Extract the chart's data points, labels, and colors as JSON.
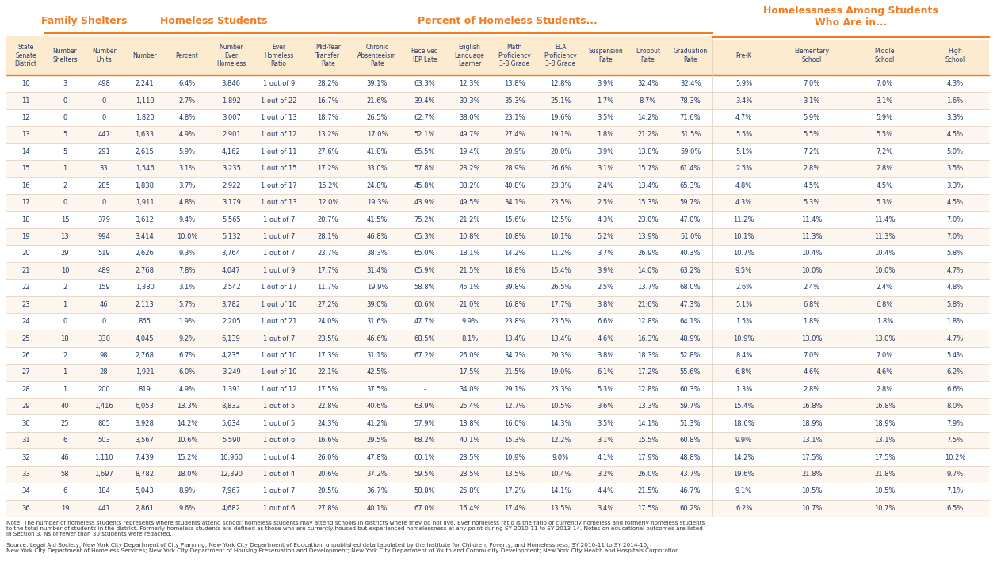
{
  "title_main": "Homelessness Among Students\nWho Are in...",
  "section_headers": [
    {
      "label": "Family Shelters",
      "color": "#F47B20"
    },
    {
      "label": "Homeless Students",
      "color": "#F47B20"
    },
    {
      "label": "Percent of Homeless Students...",
      "color": "#F47B20"
    },
    {
      "label": "Homelessness Among Students\nWho Are in...",
      "color": "#F47B20"
    }
  ],
  "col_headers": [
    "State\nSenate\nDistrict",
    "Number\nShelters",
    "Number\nUnits",
    "Number",
    "Percent",
    "Number\nEver\nHomeless",
    "Ever\nHomeless\nRatio",
    "Mid-Year\nTransfer\nRate",
    "Chronic\nAbsenteeism\nRate",
    "Received\nIEP Late",
    "English\nLanguage\nLearner",
    "Math\nProficiency\n3-8 Grade",
    "ELA\nProficiency\n3-8 Grade",
    "Suspension\nRate",
    "Dropout\nRate",
    "Graduation\nRate",
    "Pre-K",
    "Elementary\nSchool",
    "Middle\nSchool",
    "High\nSchool"
  ],
  "rows": [
    [
      "10",
      "3",
      "498",
      "2,241",
      "6.4%",
      "3,846",
      "1 out of 9",
      "28.2%",
      "39.1%",
      "63.3%",
      "12.3%",
      "13.8%",
      "12.8%",
      "3.9%",
      "32.4%",
      "32.4%",
      "5.9%",
      "7.0%",
      "7.0%",
      "4.3%"
    ],
    [
      "11",
      "0",
      "0",
      "1,110",
      "2.7%",
      "1,892",
      "1 out of 22",
      "16.7%",
      "21.6%",
      "39.4%",
      "30.3%",
      "35.3%",
      "25.1%",
      "1.7%",
      "8.7%",
      "78.3%",
      "3.4%",
      "3.1%",
      "3.1%",
      "1.6%"
    ],
    [
      "12",
      "0",
      "0",
      "1,820",
      "4.8%",
      "3,007",
      "1 out of 13",
      "18.7%",
      "26.5%",
      "62.7%",
      "38.0%",
      "23.1%",
      "19.6%",
      "3.5%",
      "14.2%",
      "71.6%",
      "4.7%",
      "5.9%",
      "5.9%",
      "3.3%"
    ],
    [
      "13",
      "5",
      "447",
      "1,633",
      "4.9%",
      "2,901",
      "1 out of 12",
      "13.2%",
      "17.0%",
      "52.1%",
      "49.7%",
      "27.4%",
      "19.1%",
      "1.8%",
      "21.2%",
      "51.5%",
      "5.5%",
      "5.5%",
      "5.5%",
      "4.5%"
    ],
    [
      "14",
      "5",
      "291",
      "2,615",
      "5.9%",
      "4,162",
      "1 out of 11",
      "27.6%",
      "41.8%",
      "65.5%",
      "19.4%",
      "20.9%",
      "20.0%",
      "3.9%",
      "13.8%",
      "59.0%",
      "5.1%",
      "7.2%",
      "7.2%",
      "5.0%"
    ],
    [
      "15",
      "1",
      "33",
      "1,546",
      "3.1%",
      "3,235",
      "1 out of 15",
      "17.2%",
      "33.0%",
      "57.8%",
      "23.2%",
      "28.9%",
      "26.6%",
      "3.1%",
      "15.7%",
      "61.4%",
      "2.5%",
      "2.8%",
      "2.8%",
      "3.5%"
    ],
    [
      "16",
      "2",
      "285",
      "1,838",
      "3.7%",
      "2,922",
      "1 out of 17",
      "15.2%",
      "24.8%",
      "45.8%",
      "38.2%",
      "40.8%",
      "23.3%",
      "2.4%",
      "13.4%",
      "65.3%",
      "4.8%",
      "4.5%",
      "4.5%",
      "3.3%"
    ],
    [
      "17",
      "0",
      "0",
      "1,911",
      "4.8%",
      "3,179",
      "1 out of 13",
      "12.0%",
      "19.3%",
      "43.9%",
      "49.5%",
      "34.1%",
      "23.5%",
      "2.5%",
      "15.3%",
      "59.7%",
      "4.3%",
      "5.3%",
      "5.3%",
      "4.5%"
    ],
    [
      "18",
      "15",
      "379",
      "3,612",
      "9.4%",
      "5,565",
      "1 out of 7",
      "20.7%",
      "41.5%",
      "75.2%",
      "21.2%",
      "15.6%",
      "12.5%",
      "4.3%",
      "23.0%",
      "47.0%",
      "11.2%",
      "11.4%",
      "11.4%",
      "7.0%"
    ],
    [
      "19",
      "13",
      "994",
      "3,414",
      "10.0%",
      "5,132",
      "1 out of 7",
      "28.1%",
      "46.8%",
      "65.3%",
      "10.8%",
      "10.8%",
      "10.1%",
      "5.2%",
      "13.9%",
      "51.0%",
      "10.1%",
      "11.3%",
      "11.3%",
      "7.0%"
    ],
    [
      "20",
      "29",
      "519",
      "2,626",
      "9.3%",
      "3,764",
      "1 out of 7",
      "23.7%",
      "38.3%",
      "65.0%",
      "18.1%",
      "14.2%",
      "11.2%",
      "3.7%",
      "26.9%",
      "40.3%",
      "10.7%",
      "10.4%",
      "10.4%",
      "5.8%"
    ],
    [
      "21",
      "10",
      "489",
      "2,768",
      "7.8%",
      "4,047",
      "1 out of 9",
      "17.7%",
      "31.4%",
      "65.9%",
      "21.5%",
      "18.8%",
      "15.4%",
      "3.9%",
      "14.0%",
      "63.2%",
      "9.5%",
      "10.0%",
      "10.0%",
      "4.7%"
    ],
    [
      "22",
      "2",
      "159",
      "1,380",
      "3.1%",
      "2,542",
      "1 out of 17",
      "11.7%",
      "19.9%",
      "58.8%",
      "45.1%",
      "39.8%",
      "26.5%",
      "2.5%",
      "13.7%",
      "68.0%",
      "2.6%",
      "2.4%",
      "2.4%",
      "4.8%"
    ],
    [
      "23",
      "1",
      "46",
      "2,113",
      "5.7%",
      "3,782",
      "1 out of 10",
      "27.2%",
      "39.0%",
      "60.6%",
      "21.0%",
      "16.8%",
      "17.7%",
      "3.8%",
      "21.6%",
      "47.3%",
      "5.1%",
      "6.8%",
      "6.8%",
      "5.8%"
    ],
    [
      "24",
      "0",
      "0",
      "865",
      "1.9%",
      "2,205",
      "1 out of 21",
      "24.0%",
      "31.6%",
      "47.7%",
      "9.9%",
      "23.8%",
      "23.5%",
      "6.6%",
      "12.8%",
      "64.1%",
      "1.5%",
      "1.8%",
      "1.8%",
      "1.8%"
    ],
    [
      "25",
      "18",
      "330",
      "4,045",
      "9.2%",
      "6,139",
      "1 out of 7",
      "23.5%",
      "46.6%",
      "68.5%",
      "8.1%",
      "13.4%",
      "13.4%",
      "4.6%",
      "16.3%",
      "48.9%",
      "10.9%",
      "13.0%",
      "13.0%",
      "4.7%"
    ],
    [
      "26",
      "2",
      "98",
      "2,768",
      "6.7%",
      "4,235",
      "1 out of 10",
      "17.3%",
      "31.1%",
      "67.2%",
      "26.0%",
      "34.7%",
      "20.3%",
      "3.8%",
      "18.3%",
      "52.8%",
      "8.4%",
      "7.0%",
      "7.0%",
      "5.4%"
    ],
    [
      "27",
      "1",
      "28",
      "1,921",
      "6.0%",
      "3,249",
      "1 out of 10",
      "22.1%",
      "42.5%",
      "-",
      "17.5%",
      "21.5%",
      "19.0%",
      "6.1%",
      "17.2%",
      "55.6%",
      "6.8%",
      "4.6%",
      "4.6%",
      "6.2%"
    ],
    [
      "28",
      "1",
      "200",
      "819",
      "4.9%",
      "1,391",
      "1 out of 12",
      "17.5%",
      "37.5%",
      "-",
      "34.0%",
      "29.1%",
      "23.3%",
      "5.3%",
      "12.8%",
      "60.3%",
      "1.3%",
      "2.8%",
      "2.8%",
      "6.6%"
    ],
    [
      "29",
      "40",
      "1,416",
      "6,053",
      "13.3%",
      "8,832",
      "1 out of 5",
      "22.8%",
      "40.6%",
      "63.9%",
      "25.4%",
      "12.7%",
      "10.5%",
      "3.6%",
      "13.3%",
      "59.7%",
      "15.4%",
      "16.8%",
      "16.8%",
      "8.0%"
    ],
    [
      "30",
      "25",
      "805",
      "3,928",
      "14.2%",
      "5,634",
      "1 out of 5",
      "24.3%",
      "41.2%",
      "57.9%",
      "13.8%",
      "16.0%",
      "14.3%",
      "3.5%",
      "14.1%",
      "51.3%",
      "18.6%",
      "18.9%",
      "18.9%",
      "7.9%"
    ],
    [
      "31",
      "6",
      "503",
      "3,567",
      "10.6%",
      "5,590",
      "1 out of 6",
      "16.6%",
      "29.5%",
      "68.2%",
      "40.1%",
      "15.3%",
      "12.2%",
      "3.1%",
      "15.5%",
      "60.8%",
      "9.9%",
      "13.1%",
      "13.1%",
      "7.5%"
    ],
    [
      "32",
      "46",
      "1,110",
      "7,439",
      "15.2%",
      "10,960",
      "1 out of 4",
      "26.0%",
      "47.8%",
      "60.1%",
      "23.5%",
      "10.9%",
      "9.0%",
      "4.1%",
      "17.9%",
      "48.8%",
      "14.2%",
      "17.5%",
      "17.5%",
      "10.2%"
    ],
    [
      "33",
      "58",
      "1,697",
      "8,782",
      "18.0%",
      "12,390",
      "1 out of 4",
      "20.6%",
      "37.2%",
      "59.5%",
      "28.5%",
      "13.5%",
      "10.4%",
      "3.2%",
      "26.0%",
      "43.7%",
      "19.6%",
      "21.8%",
      "21.8%",
      "9.7%"
    ],
    [
      "34",
      "6",
      "184",
      "5,043",
      "8.9%",
      "7,967",
      "1 out of 7",
      "20.5%",
      "36.7%",
      "58.8%",
      "25.8%",
      "17.2%",
      "14.1%",
      "4.4%",
      "21.5%",
      "46.7%",
      "9.1%",
      "10.5%",
      "10.5%",
      "7.1%"
    ],
    [
      "36",
      "19",
      "441",
      "2,861",
      "9.6%",
      "4,682",
      "1 out of 6",
      "27.8%",
      "40.1%",
      "67.0%",
      "16.4%",
      "17.4%",
      "13.5%",
      "3.4%",
      "17.5%",
      "60.2%",
      "6.2%",
      "10.7%",
      "10.7%",
      "6.5%"
    ]
  ],
  "note_text": "Note: The number of homeless students represents where students attend school; homeless students may attend schools in districts where they do not live. Ever homeless ratio is the ratio of currently homeless and formerly homeless students\nto the total number of students in the district. Formerly homeless students are defined as those who are currently housed but experienced homelessness at any point during SY 2010-11 to SY 2013-14. Notes on educational outcomes are listed\nin Section 3. Ns of fewer than 30 students were redacted.",
  "source_text": "Source: Legal Aid Society; New York City Department of City Planning; New York City Department of Education, unpublished data tabulated by the Institute for Children, Poverty, and Homelessness, SY 2010-11 to SY 2014-15;\nNew York City Department of Homeless Services; New York City Department of Housing Preservation and Development; New York City Department of Youth and Community Development; New York City Health and Hospitals Corporation.",
  "header_bg": "#FDEBD0",
  "row_bg_odd": "#FFFFFF",
  "row_bg_even": "#FDF6EE",
  "orange_color": "#F47B20",
  "text_color": "#1F3864",
  "header_text_color": "#1F3864",
  "section_line_color": "#F47B20",
  "col_sep_colors": {
    "family_shelters": [
      1,
      2
    ],
    "homeless_students": [
      3,
      4,
      5,
      6
    ],
    "percent_homeless": [
      7,
      8,
      9,
      10,
      11,
      12,
      13,
      14,
      15
    ],
    "homelessness_among": [
      16,
      17,
      18,
      19
    ]
  }
}
